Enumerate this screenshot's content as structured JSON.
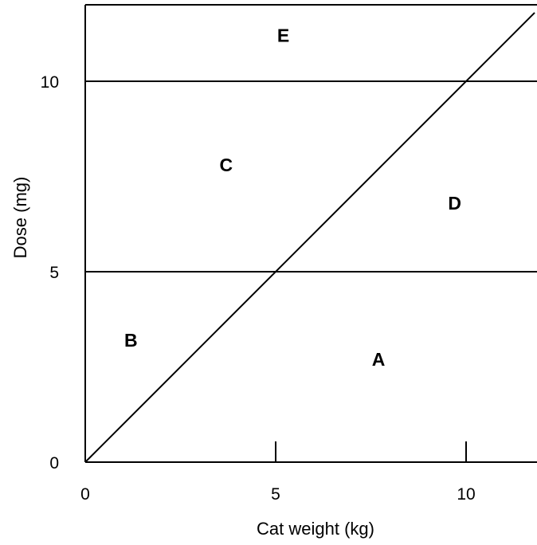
{
  "chart_data": {
    "type": "line",
    "xlabel": "Cat weight (kg)",
    "ylabel": "Dose (mg)",
    "xlim": [
      0,
      11.8
    ],
    "ylim": [
      0,
      12
    ],
    "x_ticks": [
      0,
      5,
      10
    ],
    "y_ticks": [
      0,
      5,
      10
    ],
    "x_tick_labels": [
      "0",
      "5",
      "10"
    ],
    "y_tick_labels": [
      "0",
      "5",
      "10"
    ],
    "grid": false,
    "series": [
      {
        "x": [
          0,
          11.8
        ],
        "y": [
          0,
          11.8
        ]
      }
    ],
    "hlines": [
      5,
      10
    ],
    "regions": [
      {
        "label": "A",
        "x": 7.7,
        "y": 2.7
      },
      {
        "label": "B",
        "x": 1.2,
        "y": 3.2
      },
      {
        "label": "C",
        "x": 3.7,
        "y": 7.8
      },
      {
        "label": "D",
        "x": 9.7,
        "y": 6.8
      },
      {
        "label": "E",
        "x": 5.2,
        "y": 11.2
      }
    ]
  }
}
